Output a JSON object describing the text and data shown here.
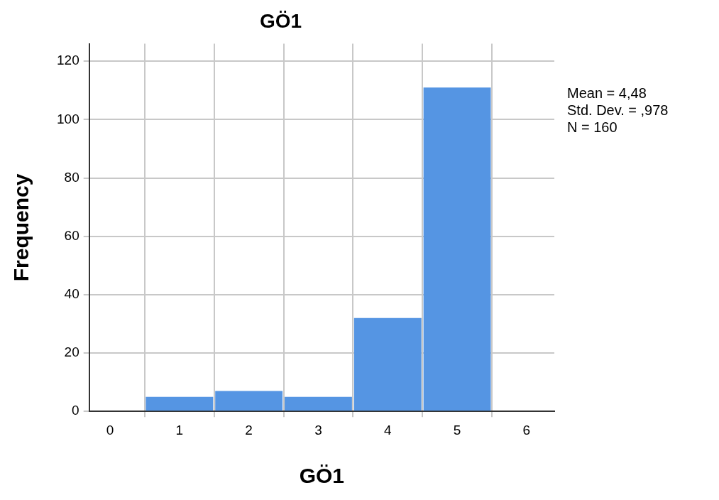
{
  "chart_data": {
    "type": "histogram",
    "title": "GÖ1",
    "xlabel": "GÖ1",
    "ylabel": "Frequency",
    "bins": [
      0.5,
      1.5,
      2.5,
      3.5,
      4.5,
      5.5
    ],
    "values": [
      5,
      7,
      5,
      32,
      111
    ],
    "color": "#5595e3",
    "xlim": [
      -0.3,
      6.4
    ],
    "xticks": [
      0,
      1,
      2,
      3,
      4,
      5,
      6
    ],
    "ylim": [
      0,
      126
    ],
    "yticks": [
      0,
      20,
      40,
      60,
      80,
      100,
      120
    ],
    "grid": true,
    "annotations": [
      "Mean = 4,48",
      "Std. Dev. = ,978",
      "N = 160"
    ]
  }
}
